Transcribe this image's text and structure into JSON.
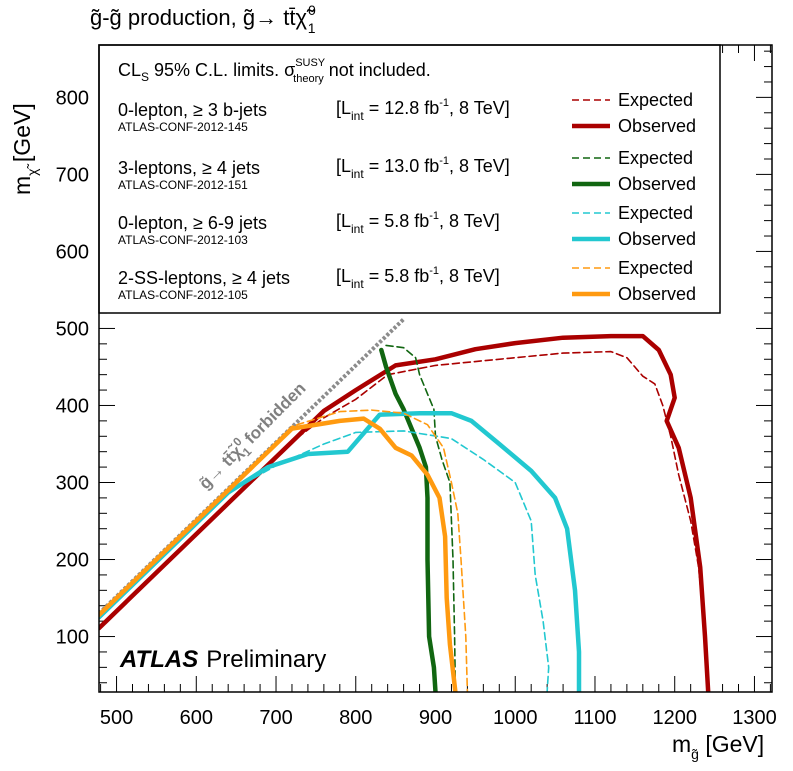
{
  "chart_data": {
    "type": "line",
    "title": "g̃-g̃ production, g̃→ tt̄χ̃",
    "title_superscript": "0",
    "title_subscript": "1",
    "xlabel": "m",
    "xlabel_sub": "g̃",
    "xlabel_unit": "[GeV]",
    "ylabel": "m",
    "ylabel_sub": "χ̃",
    "ylabel_unit": "[GeV]",
    "xlim": [
      478,
      1322
    ],
    "ylim": [
      28,
      868
    ],
    "x_ticks": [
      500,
      600,
      700,
      800,
      900,
      1000,
      1100,
      1200,
      1300
    ],
    "y_ticks": [
      100,
      200,
      300,
      400,
      500,
      600,
      700,
      800
    ],
    "legend": {
      "header": "CL",
      "header_sub": "S",
      "header_rest": " 95% C.L. limits. σ",
      "header_sup": "SUSY",
      "header_sub2": "theory",
      "header_tail": " not included.",
      "placement": "top",
      "entries": [
        {
          "analysis": "0-lepton, ≥ 3 b-jets",
          "conf": "ATLAS-CONF-2012-145",
          "lumi": "[L",
          "lumi_sub": "int",
          "lumi_rest": " = 12.8 fb",
          "lumi_sup": "-1",
          "lumi_tail": ", 8 TeV]",
          "expected": "Expected",
          "observed": "Observed",
          "color": "#aa0000"
        },
        {
          "analysis": "3-leptons, ≥ 4 jets",
          "conf": "ATLAS-CONF-2012-151",
          "lumi": "[L",
          "lumi_sub": "int",
          "lumi_rest": " = 13.0 fb",
          "lumi_sup": "-1",
          "lumi_tail": ", 8 TeV]",
          "expected": "Expected",
          "observed": "Observed",
          "color": "#116611"
        },
        {
          "analysis": "0-lepton, ≥ 6-9 jets",
          "conf": "ATLAS-CONF-2012-103",
          "lumi": "[L",
          "lumi_sub": "int",
          "lumi_rest": " = 5.8 fb",
          "lumi_sup": "-1",
          "lumi_tail": ", 8 TeV]",
          "expected": "Expected",
          "observed": "Observed",
          "color": "#22c8d0"
        },
        {
          "analysis": "2-SS-leptons, ≥ 4 jets",
          "conf": "ATLAS-CONF-2012-105",
          "lumi": "[L",
          "lumi_sub": "int",
          "lumi_rest": " = 5.8 fb",
          "lumi_sup": "-1",
          "lumi_tail": ", 8 TeV]",
          "expected": "Expected",
          "observed": "Observed",
          "color": "#ff9a10"
        }
      ]
    },
    "annotations": {
      "forbidden": "g̃→ tt̄χ̃",
      "forbidden_sup": "0",
      "forbidden_sub": "1",
      "forbidden_tail": " forbidden",
      "atlas": "ATLAS",
      "atlas_suffix": "Preliminary"
    },
    "kinematic_line": [
      [
        478,
        130
      ],
      [
        860,
        512
      ]
    ],
    "series": [
      {
        "name": "0-lepton, ≥ 3 b-jets Expected",
        "color": "#aa0000",
        "style": "dashed",
        "points": [
          [
            478,
            111
          ],
          [
            560,
            193
          ],
          [
            640,
            273
          ],
          [
            720,
            353
          ],
          [
            760,
            384
          ],
          [
            800,
            408
          ],
          [
            840,
            440
          ],
          [
            900,
            452
          ],
          [
            1000,
            462
          ],
          [
            1060,
            468
          ],
          [
            1120,
            470
          ],
          [
            1140,
            462
          ],
          [
            1160,
            438
          ],
          [
            1175,
            428
          ],
          [
            1185,
            400
          ],
          [
            1195,
            360
          ],
          [
            1205,
            310
          ],
          [
            1220,
            250
          ],
          [
            1230,
            190
          ],
          [
            1238,
            100
          ],
          [
            1242,
            28
          ]
        ]
      },
      {
        "name": "0-lepton, ≥ 3 b-jets Observed",
        "color": "#aa0000",
        "style": "solid",
        "points": [
          [
            478,
            111
          ],
          [
            560,
            193
          ],
          [
            640,
            273
          ],
          [
            720,
            353
          ],
          [
            760,
            393
          ],
          [
            800,
            420
          ],
          [
            850,
            452
          ],
          [
            900,
            460
          ],
          [
            950,
            473
          ],
          [
            1000,
            481
          ],
          [
            1060,
            488
          ],
          [
            1120,
            490
          ],
          [
            1160,
            490
          ],
          [
            1180,
            472
          ],
          [
            1195,
            440
          ],
          [
            1200,
            410
          ],
          [
            1190,
            380
          ],
          [
            1205,
            345
          ],
          [
            1220,
            280
          ],
          [
            1232,
            190
          ],
          [
            1238,
            100
          ],
          [
            1242,
            28
          ]
        ]
      },
      {
        "name": "3-leptons, ≥ 4 jets Expected",
        "color": "#116611",
        "style": "dashed",
        "points": [
          [
            838,
            478
          ],
          [
            860,
            475
          ],
          [
            875,
            462
          ],
          [
            880,
            440
          ],
          [
            890,
            415
          ],
          [
            898,
            395
          ],
          [
            900,
            360
          ],
          [
            908,
            330
          ],
          [
            918,
            300
          ],
          [
            922,
            200
          ],
          [
            924,
            100
          ],
          [
            925,
            28
          ]
        ]
      },
      {
        "name": "3-leptons, ≥ 4 jets Observed",
        "color": "#116611",
        "style": "solid",
        "points": [
          [
            832,
            472
          ],
          [
            838,
            450
          ],
          [
            850,
            415
          ],
          [
            860,
            395
          ],
          [
            870,
            370
          ],
          [
            880,
            345
          ],
          [
            888,
            320
          ],
          [
            890,
            280
          ],
          [
            890,
            200
          ],
          [
            892,
            100
          ],
          [
            898,
            60
          ],
          [
            900,
            28
          ]
        ]
      },
      {
        "name": "0-lepton, ≥ 6-9 jets Expected",
        "color": "#22c8d0",
        "style": "dashed",
        "points": [
          [
            478,
            125
          ],
          [
            560,
            207
          ],
          [
            640,
            287
          ],
          [
            700,
            322
          ],
          [
            760,
            350
          ],
          [
            800,
            365
          ],
          [
            860,
            367
          ],
          [
            920,
            357
          ],
          [
            960,
            330
          ],
          [
            1000,
            300
          ],
          [
            1020,
            250
          ],
          [
            1025,
            180
          ],
          [
            1035,
            120
          ],
          [
            1042,
            60
          ],
          [
            1040,
            28
          ]
        ]
      },
      {
        "name": "0-lepton, ≥ 6-9 jets Observed",
        "color": "#22c8d0",
        "style": "solid",
        "points": [
          [
            478,
            125
          ],
          [
            560,
            207
          ],
          [
            640,
            287
          ],
          [
            690,
            320
          ],
          [
            740,
            337
          ],
          [
            790,
            340
          ],
          [
            830,
            388
          ],
          [
            880,
            390
          ],
          [
            920,
            390
          ],
          [
            945,
            380
          ],
          [
            980,
            350
          ],
          [
            1020,
            315
          ],
          [
            1050,
            280
          ],
          [
            1065,
            240
          ],
          [
            1075,
            160
          ],
          [
            1080,
            80
          ],
          [
            1080,
            28
          ]
        ]
      },
      {
        "name": "2-SS-leptons, ≥ 4 jets Expected",
        "color": "#ff9a10",
        "style": "dashed",
        "points": [
          [
            478,
            128
          ],
          [
            560,
            210
          ],
          [
            640,
            290
          ],
          [
            720,
            373
          ],
          [
            780,
            392
          ],
          [
            820,
            394
          ],
          [
            860,
            390
          ],
          [
            890,
            375
          ],
          [
            910,
            345
          ],
          [
            920,
            300
          ],
          [
            928,
            260
          ],
          [
            932,
            200
          ],
          [
            935,
            150
          ],
          [
            938,
            100
          ],
          [
            940,
            28
          ]
        ]
      },
      {
        "name": "2-SS-leptons, ≥ 4 jets Observed",
        "color": "#ff9a10",
        "style": "solid",
        "points": [
          [
            478,
            128
          ],
          [
            560,
            210
          ],
          [
            640,
            290
          ],
          [
            720,
            370
          ],
          [
            780,
            380
          ],
          [
            810,
            383
          ],
          [
            830,
            370
          ],
          [
            850,
            345
          ],
          [
            870,
            335
          ],
          [
            890,
            310
          ],
          [
            905,
            280
          ],
          [
            912,
            230
          ],
          [
            914,
            150
          ],
          [
            918,
            90
          ],
          [
            925,
            28
          ]
        ]
      }
    ]
  }
}
